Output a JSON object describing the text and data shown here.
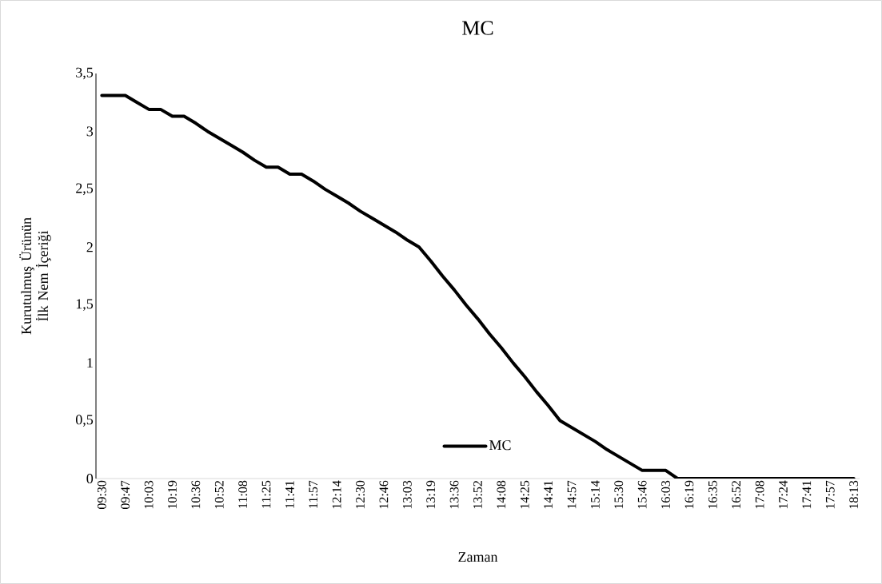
{
  "chart_data": {
    "type": "line",
    "title": "MC",
    "xlabel": "Zaman",
    "ylabel": "Kurutulmuş Ürünün İlk Nem İçeriği",
    "categories": [
      "09:30",
      null,
      "09:47",
      null,
      "10:03",
      null,
      "10:19",
      null,
      "10:36",
      null,
      "10:52",
      null,
      "11:08",
      null,
      "11:25",
      null,
      "11:41",
      null,
      "11:57",
      null,
      "12:14",
      null,
      "12:30",
      null,
      "12:46",
      null,
      "13:03",
      null,
      "13:19",
      null,
      "13:36",
      null,
      "13:52",
      null,
      "14:08",
      null,
      "14:25",
      null,
      "14:41",
      null,
      "14:57",
      null,
      "15:14",
      null,
      "15:30",
      null,
      "15:46",
      null,
      "16:03",
      null,
      "16:19",
      null,
      "16:35",
      null,
      "16:52",
      null,
      "17:08",
      null,
      "17:24",
      null,
      "17:41",
      null,
      "17:57",
      null,
      "18:13"
    ],
    "series": [
      {
        "name": "MC",
        "color": "#000000",
        "values": [
          3.31,
          3.31,
          3.31,
          3.25,
          3.19,
          3.19,
          3.13,
          3.13,
          3.07,
          3.0,
          2.94,
          2.88,
          2.82,
          2.75,
          2.69,
          2.69,
          2.63,
          2.63,
          2.57,
          2.5,
          2.44,
          2.38,
          2.31,
          2.25,
          2.19,
          2.13,
          2.06,
          2.0,
          1.88,
          1.75,
          1.63,
          1.5,
          1.38,
          1.25,
          1.13,
          1.0,
          0.88,
          0.75,
          0.63,
          0.5,
          0.44,
          0.38,
          0.32,
          0.25,
          0.19,
          0.13,
          0.07,
          0.07,
          0.07,
          0,
          0,
          0,
          0,
          0,
          0,
          0,
          0,
          0,
          0,
          0,
          0,
          0,
          0,
          0,
          0
        ]
      }
    ],
    "ylim": [
      0,
      3.5
    ],
    "yticks": [
      0,
      {
        "value": 0.5,
        "label": "0,5"
      },
      1,
      {
        "value": 1.5,
        "label": "1,5"
      },
      2,
      {
        "value": 2.5,
        "label": "2,5"
      },
      3,
      {
        "value": 3.5,
        "label": "3,5"
      }
    ],
    "legend": "bottom",
    "grid": false
  }
}
